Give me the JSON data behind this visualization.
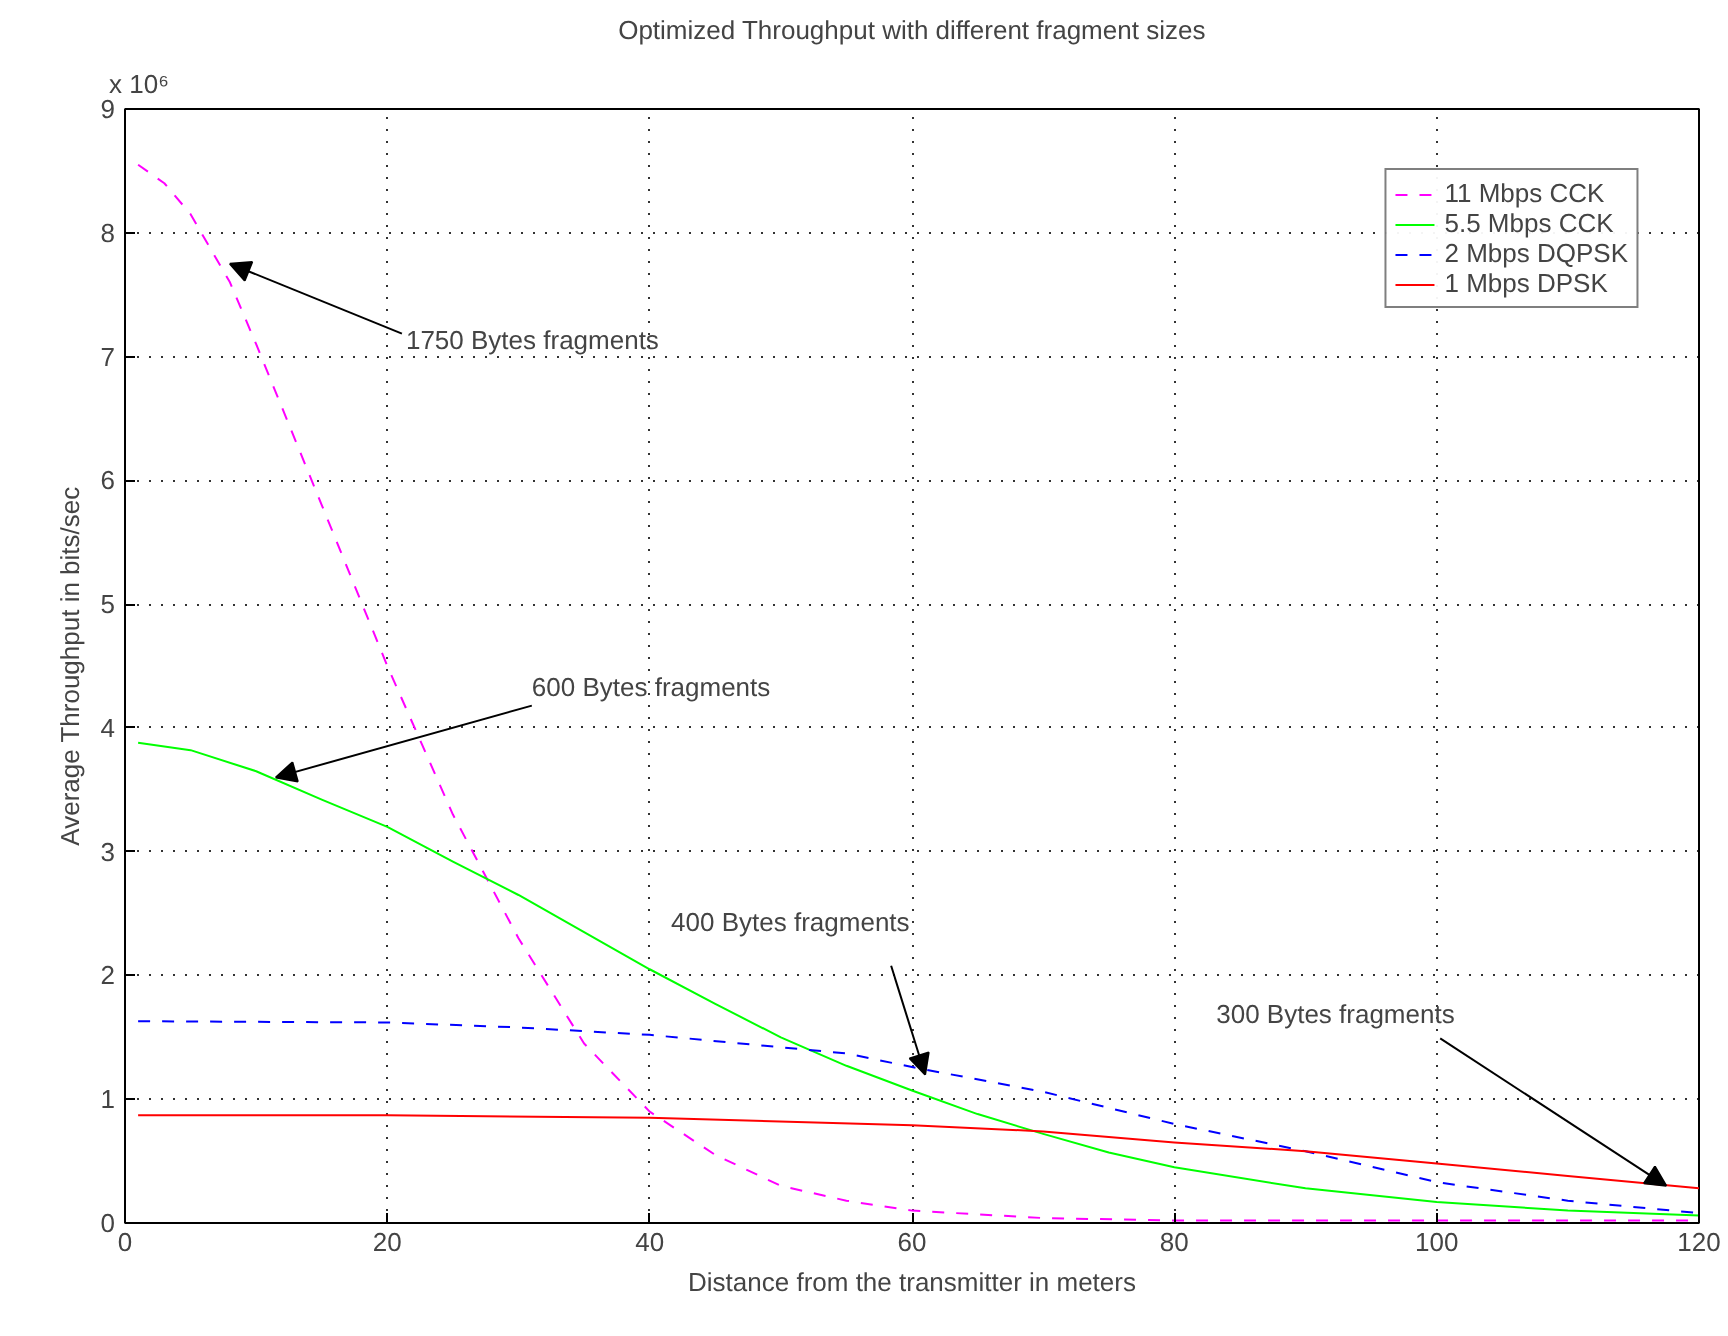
{
  "chart_data": {
    "type": "line",
    "title": "Optimized Throughput with different fragment sizes",
    "xlabel": "Distance from the transmitter in meters",
    "ylabel": "Average Throughput in bits/sec",
    "xlim": [
      0,
      120
    ],
    "xticks": [
      0,
      20,
      40,
      60,
      80,
      100,
      120
    ],
    "ylim": [
      0,
      9
    ],
    "yticks": [
      0,
      1,
      2,
      3,
      4,
      5,
      6,
      7,
      8,
      9
    ],
    "grid": true,
    "legend": "top right",
    "series": [
      {
        "name": "11 Mbps CCK",
        "color": "#ff00ff",
        "line_style": "dashed",
        "x": [
          1,
          3,
          5,
          8,
          10,
          15,
          20,
          25,
          30,
          35,
          40,
          45,
          50,
          55,
          60,
          70,
          80,
          90,
          120
        ],
        "values": [
          8.55,
          8.4,
          8.15,
          7.6,
          7.1,
          5.8,
          4.5,
          3.3,
          2.3,
          1.45,
          0.9,
          0.55,
          0.3,
          0.18,
          0.1,
          0.04,
          0.02,
          0.02,
          0.02
        ]
      },
      {
        "name": "5.5 Mbps CCK",
        "color": "#00ff00",
        "line_style": "solid",
        "x": [
          1,
          5,
          10,
          15,
          20,
          25,
          30,
          35,
          40,
          45,
          50,
          55,
          60,
          65,
          70,
          75,
          80,
          90,
          100,
          110,
          120
        ],
        "values": [
          3.88,
          3.82,
          3.65,
          3.42,
          3.2,
          2.92,
          2.65,
          2.35,
          2.05,
          1.77,
          1.5,
          1.27,
          1.07,
          0.88,
          0.72,
          0.57,
          0.45,
          0.28,
          0.17,
          0.1,
          0.06
        ]
      },
      {
        "name": "2 Mbps DQPSK",
        "color": "#0000ff",
        "line_style": "dashed",
        "x": [
          1,
          20,
          30,
          40,
          50,
          55,
          60,
          70,
          80,
          90,
          100,
          110,
          120
        ],
        "values": [
          1.63,
          1.62,
          1.58,
          1.52,
          1.42,
          1.37,
          1.26,
          1.06,
          0.8,
          0.58,
          0.33,
          0.18,
          0.08
        ]
      },
      {
        "name": "1 Mbps DPSK",
        "color": "#ff0000",
        "line_style": "solid",
        "x": [
          1,
          20,
          40,
          60,
          70,
          80,
          90,
          100,
          110,
          120
        ],
        "values": [
          0.87,
          0.87,
          0.85,
          0.79,
          0.74,
          0.65,
          0.58,
          0.48,
          0.38,
          0.28
        ]
      }
    ],
    "annotations": [
      "x 10⁶",
      {
        "text": "1750 Bytes fragments",
        "x": 8,
        "y": 7.75
      },
      {
        "text": "600 Bytes fragments",
        "x": 11.5,
        "y": 3.6
      },
      {
        "text": "400 Bytes fragments",
        "x": 61,
        "y": 1.2
      },
      {
        "text": "300 Bytes fragments",
        "x": 117.5,
        "y": 0.3
      }
    ]
  }
}
